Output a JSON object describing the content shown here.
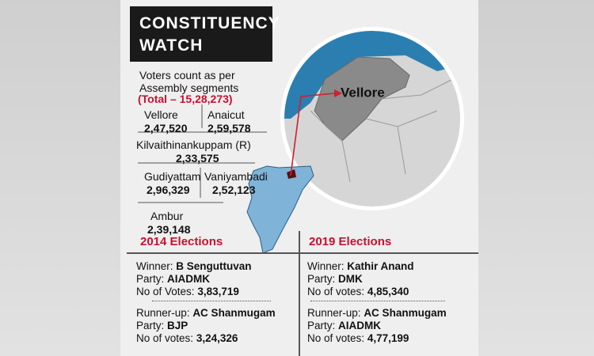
{
  "header": {
    "title": [
      "CONSTITUENCY",
      "WATCH"
    ]
  },
  "voters": {
    "intro": "Voters count as per Assembly segments",
    "total": "(Total – 15,28,273)",
    "segments": [
      {
        "name": "Vellore",
        "count": "2,47,520"
      },
      {
        "name": "Anaicut",
        "count": "2,59,578"
      },
      {
        "name": "Kilvaithinankuppam (R)",
        "count": "2,33,575"
      },
      {
        "name": "Gudiyattam",
        "count": "2,96,329"
      },
      {
        "name": "Vaniyambadi",
        "count": "2,52,123"
      },
      {
        "name": "Ambur",
        "count": "2,39,148"
      }
    ]
  },
  "map": {
    "label": "Vellore"
  },
  "elections": [
    {
      "heading": "2014 Elections",
      "winner": [
        {
          "label": "Winner:",
          "value": "B Senguttuvan"
        },
        {
          "label": "Party:",
          "value": "AIADMK"
        },
        {
          "label": "No of Votes:",
          "value": "3,83,719"
        }
      ],
      "runner_up": [
        {
          "label": "Runner-up:",
          "value": "AC Shanmugam"
        },
        {
          "label": "Party:",
          "value": "BJP"
        },
        {
          "label": "No of votes:",
          "value": "3,24,326"
        }
      ]
    },
    {
      "heading": "2019 Elections",
      "winner": [
        {
          "label": "Winner:",
          "value": "Kathir Anand"
        },
        {
          "label": "Party:",
          "value": "DMK"
        },
        {
          "label": "No of votes:",
          "value": "4,85,340"
        }
      ],
      "runner_up": [
        {
          "label": "Runner-up:",
          "value": "AC Shanmugam"
        },
        {
          "label": "Party:",
          "value": "AIADMK"
        },
        {
          "label": "No of votes:",
          "value": "4,77,199"
        }
      ]
    }
  ]
}
